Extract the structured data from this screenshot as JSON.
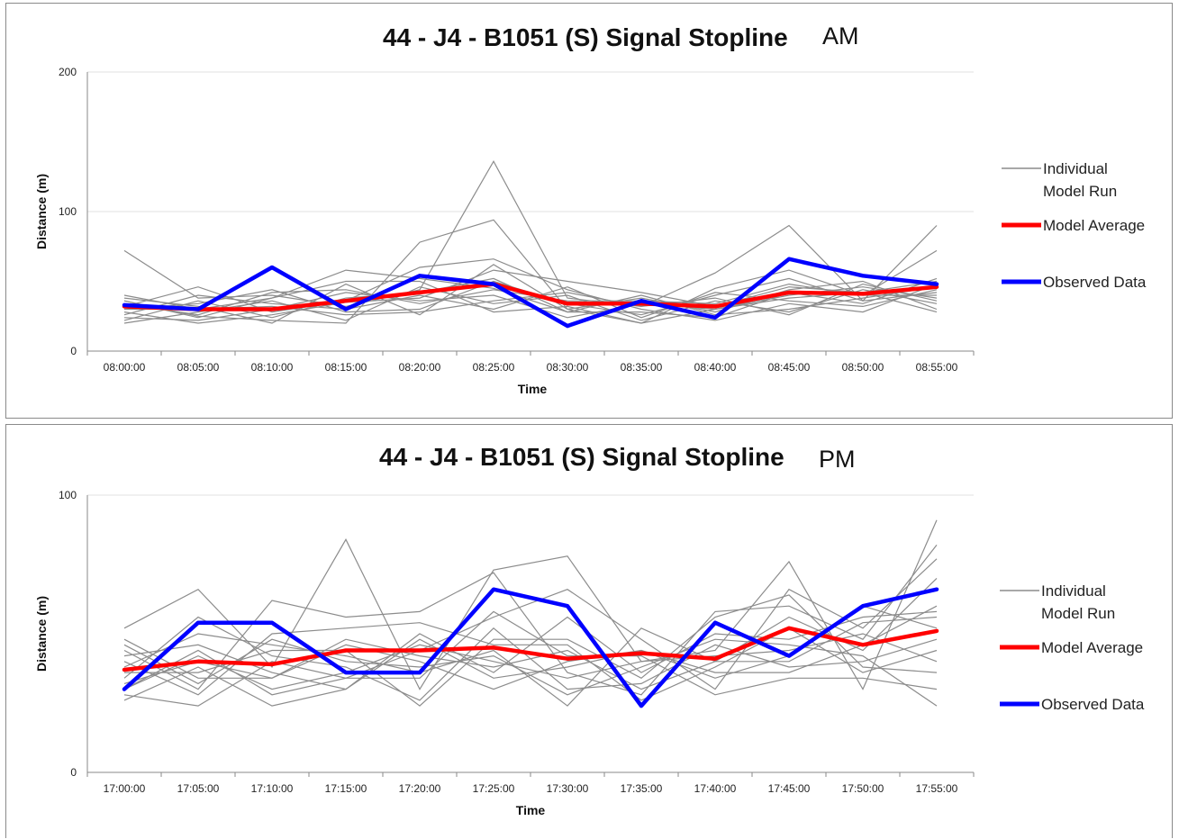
{
  "chart_data": [
    {
      "type": "line",
      "title": "44 - J4 - B1051 (S) Signal Stopline",
      "title_suffix": "AM",
      "xlabel": "Time",
      "ylabel": "Distance (m)",
      "ylim": [
        0,
        200
      ],
      "yticks": [
        "0",
        "100",
        "200"
      ],
      "grid": "horizontal",
      "legend_position": "right",
      "categories": [
        "08:00:00",
        "08:05:00",
        "08:10:00",
        "08:15:00",
        "08:20:00",
        "08:25:00",
        "08:30:00",
        "08:35:00",
        "08:40:00",
        "08:45:00",
        "08:50:00",
        "08:55:00"
      ],
      "legend": [
        {
          "line1": "Individual",
          "line2": "Model Run",
          "color": "#8c8c8c",
          "style": "thin"
        },
        {
          "line1": "Model Average",
          "line2": "",
          "color": "#ff0000",
          "style": "thick"
        },
        {
          "line1": "Observed Data",
          "line2": "",
          "color": "#0000ff",
          "style": "thick"
        }
      ],
      "individual_runs": [
        [
          72,
          38,
          40,
          32,
          44,
          136,
          38,
          32,
          56,
          90,
          36,
          90
        ],
        [
          36,
          25,
          22,
          20,
          78,
          94,
          30,
          20,
          45,
          58,
          40,
          72
        ],
        [
          28,
          20,
          26,
          35,
          38,
          58,
          50,
          42,
          32,
          46,
          42,
          50
        ],
        [
          40,
          30,
          38,
          58,
          52,
          45,
          28,
          40,
          26,
          30,
          38,
          46
        ],
        [
          30,
          34,
          44,
          28,
          30,
          50,
          34,
          26,
          40,
          52,
          36,
          42
        ],
        [
          24,
          22,
          30,
          42,
          36,
          40,
          24,
          34,
          30,
          40,
          46,
          38
        ],
        [
          32,
          46,
          28,
          36,
          60,
          66,
          44,
          30,
          22,
          34,
          28,
          48
        ],
        [
          20,
          28,
          36,
          22,
          46,
          34,
          40,
          22,
          36,
          28,
          44,
          34
        ],
        [
          38,
          32,
          20,
          48,
          26,
          62,
          30,
          38,
          28,
          44,
          50,
          30
        ],
        [
          26,
          40,
          34,
          30,
          40,
          30,
          46,
          24,
          42,
          36,
          32,
          44
        ],
        [
          34,
          26,
          42,
          44,
          34,
          44,
          36,
          36,
          34,
          48,
          40,
          40
        ],
        [
          22,
          36,
          24,
          38,
          42,
          52,
          28,
          28,
          24,
          42,
          34,
          52
        ],
        [
          30,
          30,
          32,
          26,
          28,
          36,
          42,
          32,
          38,
          26,
          48,
          36
        ],
        [
          36,
          24,
          38,
          50,
          50,
          28,
          32,
          20,
          30,
          38,
          42,
          28
        ]
      ],
      "series": [
        {
          "name": "Model Average",
          "color": "#ff0000",
          "values": [
            32,
            30,
            30,
            36,
            42,
            48,
            34,
            34,
            32,
            42,
            41,
            46
          ]
        },
        {
          "name": "Observed Data",
          "color": "#0000ff",
          "values": [
            33,
            30,
            60,
            30,
            54,
            48,
            18,
            36,
            24,
            66,
            54,
            48
          ]
        }
      ]
    },
    {
      "type": "line",
      "title": "44 - J4 - B1051 (S) Signal Stopline",
      "title_suffix": "PM",
      "xlabel": "Time",
      "ylabel": "Distance (m)",
      "ylim": [
        0,
        100
      ],
      "yticks": [
        "0",
        "100"
      ],
      "grid": "horizontal",
      "legend_position": "right",
      "categories": [
        "17:00:00",
        "17:05:00",
        "17:10:00",
        "17:15:00",
        "17:20:00",
        "17:25:00",
        "17:30:00",
        "17:35:00",
        "17:40:00",
        "17:45:00",
        "17:50:00",
        "17:55:00"
      ],
      "legend": [
        {
          "line1": "Individual",
          "line2": "Model Run",
          "color": "#8c8c8c",
          "style": "thin"
        },
        {
          "line1": "Model Average",
          "line2": "",
          "color": "#ff0000",
          "style": "thick"
        },
        {
          "line1": "Observed Data",
          "line2": "",
          "color": "#0000ff",
          "style": "thick"
        }
      ],
      "individual_runs": [
        [
          52,
          66,
          38,
          84,
          30,
          73,
          78,
          40,
          44,
          76,
          30,
          91
        ],
        [
          44,
          30,
          62,
          56,
          58,
          72,
          36,
          28,
          58,
          60,
          48,
          82
        ],
        [
          30,
          44,
          28,
          34,
          44,
          56,
          66,
          48,
          30,
          66,
          52,
          77
        ],
        [
          38,
          50,
          46,
          42,
          36,
          44,
          24,
          52,
          40,
          56,
          44,
          70
        ],
        [
          26,
          38,
          24,
          30,
          50,
          36,
          56,
          36,
          50,
          48,
          56,
          58
        ],
        [
          48,
          34,
          34,
          46,
          40,
          30,
          40,
          44,
          34,
          42,
          60,
          52
        ],
        [
          34,
          56,
          42,
          38,
          26,
          52,
          30,
          32,
          46,
          38,
          40,
          48
        ],
        [
          40,
          28,
          50,
          52,
          54,
          46,
          46,
          26,
          38,
          52,
          36,
          44
        ],
        [
          30,
          42,
          30,
          36,
          46,
          40,
          34,
          40,
          42,
          44,
          50,
          40
        ],
        [
          36,
          36,
          44,
          44,
          24,
          48,
          48,
          34,
          56,
          64,
          38,
          36
        ],
        [
          42,
          46,
          36,
          30,
          48,
          34,
          38,
          44,
          36,
          36,
          46,
          60
        ],
        [
          46,
          32,
          48,
          40,
          38,
          42,
          28,
          38,
          48,
          46,
          42,
          24
        ],
        [
          32,
          40,
          34,
          48,
          42,
          38,
          44,
          30,
          40,
          40,
          54,
          56
        ],
        [
          28,
          24,
          40,
          34,
          34,
          58,
          42,
          42,
          28,
          34,
          34,
          30
        ]
      ],
      "series": [
        {
          "name": "Model Average",
          "color": "#ff0000",
          "values": [
            37,
            40,
            39,
            44,
            44,
            45,
            41,
            43,
            41,
            52,
            46,
            51
          ]
        },
        {
          "name": "Observed Data",
          "color": "#0000ff",
          "values": [
            30,
            54,
            54,
            36,
            36,
            66,
            60,
            24,
            54,
            42,
            60,
            66
          ]
        }
      ]
    }
  ]
}
